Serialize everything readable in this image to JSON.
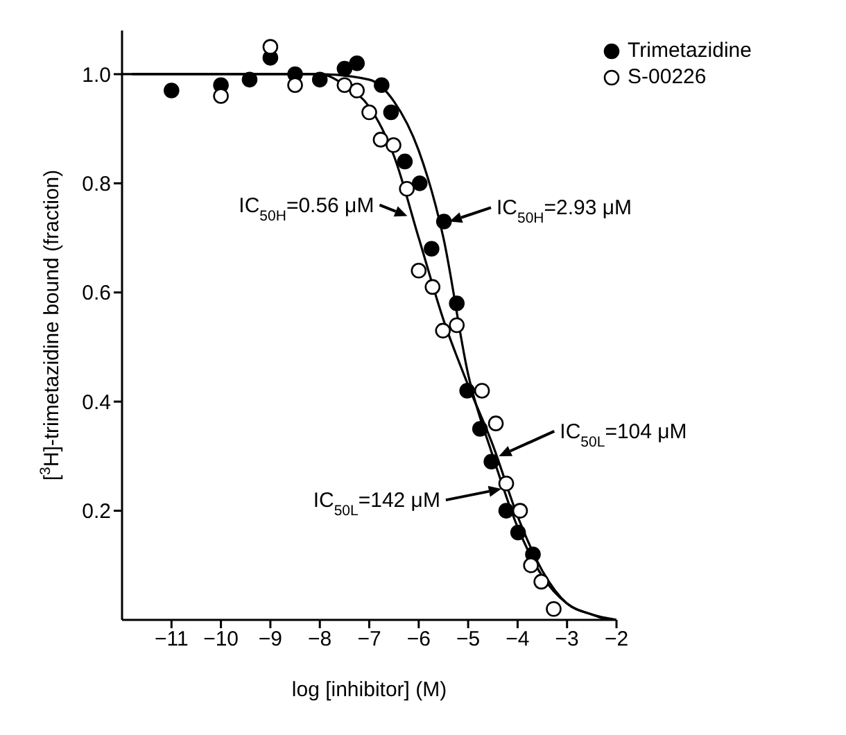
{
  "chart_data": {
    "type": "scatter",
    "xlabel": "log [inhibitor] (M)",
    "ylabel": "[$^{3}$H]-trimetazidine bound (fraction)",
    "xlim": [
      -12,
      -2
    ],
    "xticks": [
      -11,
      -10,
      -9,
      -8,
      -7,
      -6,
      -5,
      -4,
      -3,
      -2
    ],
    "ylim": [
      0,
      1.08
    ],
    "yticks": [
      0.2,
      0.4,
      0.6,
      0.8,
      {
        "value": 1,
        "label": "1.0"
      }
    ],
    "legend": "top right",
    "grid": false,
    "series": [
      {
        "name": "Trimetazidine",
        "color": "#000000",
        "marker": "circle",
        "x": [
          -11,
          -10,
          -9.42,
          -9,
          -8.5,
          -8,
          -7.5,
          -7.25,
          -6.75,
          -6.56,
          -6.28,
          -5.98,
          -5.74,
          -5.49,
          -5.23,
          -5.02,
          -4.76,
          -4.53,
          -4.23,
          -3.99,
          -3.69
        ],
        "values": [
          0.97,
          0.98,
          0.99,
          1.03,
          1.0,
          0.99,
          1.01,
          1.02,
          0.98,
          0.93,
          0.84,
          0.8,
          0.68,
          0.73,
          0.58,
          0.42,
          0.35,
          0.29,
          0.2,
          0.16,
          0.12
        ]
      },
      {
        "name": "S-00226",
        "color": "#000000",
        "marker": "circle",
        "x": [
          -10,
          -9,
          -8.5,
          -7.5,
          -7.25,
          -7.0,
          -6.77,
          -6.51,
          -6.24,
          -6.0,
          -5.72,
          -5.51,
          -5.23,
          -4.72,
          -4.44,
          -4.23,
          -3.95,
          -3.73,
          -3.52,
          -3.27
        ],
        "values": [
          0.96,
          1.05,
          0.98,
          0.98,
          0.97,
          0.93,
          0.88,
          0.87,
          0.79,
          0.64,
          0.61,
          0.53,
          0.54,
          0.42,
          0.36,
          0.25,
          0.2,
          0.1,
          0.07,
          0.02
        ]
      },
      {
        "type": "line",
        "color": "#000000",
        "x": [
          -12,
          -8,
          -7,
          -6.5,
          -6,
          -5.5,
          -5,
          -4.5,
          -4,
          -3.5,
          -3,
          -2.5,
          -2
        ],
        "values": [
          1.0,
          1.0,
          0.99,
          0.95,
          0.86,
          0.7,
          0.45,
          0.3,
          0.17,
          0.08,
          0.03,
          0.01,
          0
        ]
      },
      {
        "type": "line",
        "color": "#000000",
        "x": [
          -11.8,
          -8,
          -7.5,
          -7,
          -6.5,
          -6,
          -5.5,
          -5,
          -4.5,
          -4,
          -3.5,
          -3,
          -2.5,
          -2.2
        ],
        "values": [
          1.0,
          1.0,
          0.98,
          0.94,
          0.85,
          0.7,
          0.55,
          0.43,
          0.32,
          0.19,
          0.09,
          0.03,
          0.01,
          0
        ]
      }
    ],
    "annotations": [
      {
        "text": "IC$_{50H}$=0.56 μM",
        "x": -6.23,
        "y": 0.74
      },
      {
        "text": "IC$_{50H}$=2.93 μM",
        "x": -5.38,
        "y": 0.73
      },
      {
        "text": "IC$_{50L}$=104 μM",
        "x": -4.38,
        "y": 0.3
      },
      {
        "text": "IC$_{50L}$=142 μM",
        "x": -4.33,
        "y": 0.24
      }
    ]
  }
}
